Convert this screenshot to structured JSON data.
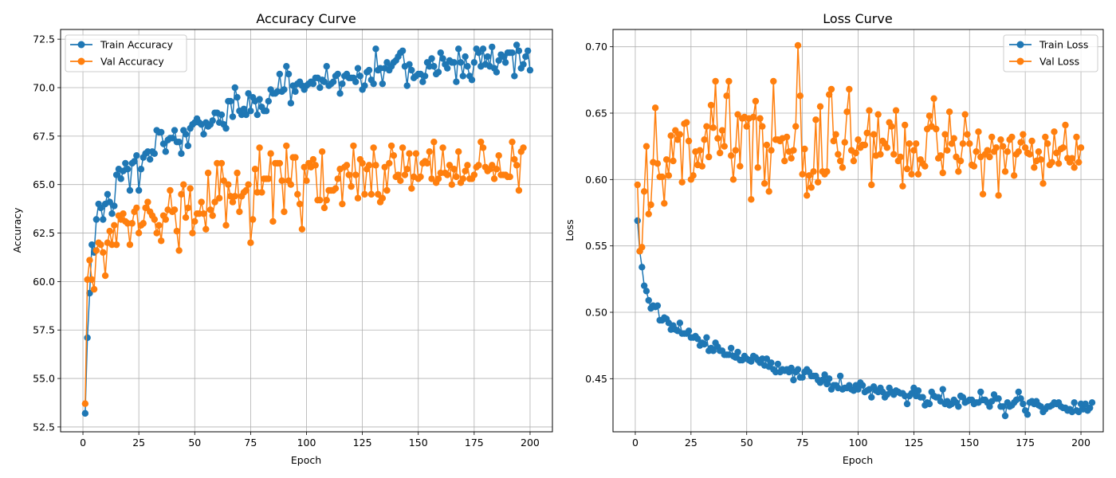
{
  "chart_data": [
    {
      "type": "line",
      "title": "Accuracy Curve",
      "xlabel": "Epoch",
      "ylabel": "Accuracy",
      "xlim": [
        -10,
        210
      ],
      "ylim": [
        52.25,
        73.0
      ],
      "xticks": [
        0,
        25,
        50,
        75,
        100,
        125,
        150,
        175,
        200
      ],
      "yticks": [
        52.5,
        55.0,
        57.5,
        60.0,
        62.5,
        65.0,
        67.5,
        70.0,
        72.5
      ],
      "grid": true,
      "legend": "top-left",
      "series": [
        {
          "name": "Train Accuracy",
          "color": "#1f77b4",
          "marker": "circle",
          "x_start": 1,
          "values": [
            53.2,
            57.1,
            59.4,
            61.9,
            61.5,
            63.2,
            64.0,
            63.8,
            63.2,
            64.0,
            64.5,
            64.1,
            63.5,
            63.9,
            65.5,
            65.8,
            65.3,
            65.7,
            66.1,
            65.8,
            64.7,
            66.1,
            66.2,
            66.5,
            64.7,
            65.8,
            66.4,
            66.6,
            66.7,
            66.3,
            66.7,
            66.6,
            67.8,
            67.7,
            67.7,
            67.1,
            66.7,
            67.3,
            67.4,
            67.4,
            67.8,
            67.2,
            67.2,
            66.6,
            67.8,
            67.6,
            67.0,
            67.9,
            68.1,
            68.2,
            68.4,
            68.2,
            68.1,
            67.6,
            68.2,
            68.0,
            68.1,
            68.3,
            68.7,
            68.7,
            68.2,
            68.6,
            68.1,
            67.9,
            69.3,
            69.3,
            68.5,
            70.0,
            69.5,
            68.8,
            68.6,
            68.9,
            68.6,
            69.7,
            68.8,
            69.5,
            69.3,
            68.6,
            69.4,
            69.0,
            68.8,
            68.8,
            69.3,
            69.9,
            69.7,
            69.7,
            69.8,
            70.7,
            69.8,
            69.9,
            71.1,
            70.7,
            69.2,
            70.1,
            69.8,
            70.2,
            70.3,
            70.1,
            69.9,
            70.1,
            70.2,
            70.3,
            70.2,
            70.5,
            70.5,
            70.0,
            70.4,
            70.3,
            71.1,
            70.1,
            70.2,
            70.3,
            70.6,
            70.7,
            69.7,
            70.2,
            70.6,
            70.7,
            70.5,
            70.5,
            70.5,
            70.3,
            71.0,
            70.6,
            69.9,
            70.1,
            70.8,
            70.9,
            70.4,
            70.2,
            72.0,
            70.9,
            71.0,
            70.2,
            71.0,
            71.3,
            70.9,
            71.1,
            71.3,
            71.4,
            71.6,
            71.8,
            71.9,
            71.1,
            70.1,
            71.2,
            70.9,
            70.5,
            70.6,
            70.7,
            70.7,
            70.3,
            70.6,
            71.3,
            71.1,
            71.5,
            71.1,
            70.7,
            70.8,
            71.8,
            71.5,
            71.2,
            71.0,
            71.4,
            71.3,
            71.3,
            70.3,
            72.0,
            71.3,
            70.6,
            71.6,
            71.1,
            70.6,
            70.4,
            71.3,
            72.0,
            71.8,
            71.1,
            72.0,
            71.2,
            71.6,
            71.1,
            72.1,
            71.0,
            70.8,
            71.4,
            71.7,
            71.6,
            71.3,
            71.8,
            71.8,
            71.8,
            70.6,
            72.2,
            71.9,
            71.0,
            71.2,
            71.6,
            71.9,
            70.9
          ],
          "values_note": ""
        },
        {
          "name": "Val Accuracy",
          "color": "#ff7f0e",
          "marker": "circle",
          "x_start": 1,
          "values": [
            53.7,
            60.1,
            61.1,
            60.1,
            59.6,
            61.6,
            62.0,
            61.9,
            61.5,
            60.3,
            62.0,
            62.6,
            61.9,
            62.9,
            61.9,
            63.4,
            63.2,
            63.5,
            63.1,
            63.0,
            61.9,
            63.0,
            63.6,
            63.8,
            62.5,
            62.9,
            63.0,
            63.8,
            64.1,
            63.6,
            63.4,
            63.2,
            62.5,
            62.9,
            62.1,
            63.4,
            63.2,
            63.7,
            64.7,
            63.6,
            63.7,
            62.6,
            61.6,
            64.5,
            65.0,
            63.3,
            63.8,
            64.8,
            62.5,
            63.1,
            63.5,
            63.5,
            64.1,
            63.5,
            62.7,
            65.6,
            63.7,
            63.4,
            64.1,
            66.1,
            64.3,
            66.1,
            65.2,
            62.9,
            65.0,
            64.4,
            64.1,
            64.4,
            65.6,
            63.6,
            64.4,
            64.6,
            64.7,
            65.0,
            62.0,
            63.2,
            65.8,
            64.6,
            66.9,
            64.6,
            65.3,
            65.3,
            65.3,
            66.6,
            63.1,
            66.1,
            66.1,
            66.1,
            65.2,
            63.6,
            67.0,
            65.2,
            65.0,
            66.4,
            66.4,
            64.5,
            64.0,
            62.7,
            65.9,
            65.2,
            66.1,
            65.9,
            66.3,
            66.0,
            64.2,
            64.2,
            66.7,
            63.8,
            64.2,
            64.7,
            64.7,
            64.7,
            64.8,
            65.3,
            65.8,
            64.0,
            65.9,
            66.0,
            65.5,
            64.9,
            67.0,
            65.5,
            64.3,
            66.3,
            66.1,
            64.5,
            65.8,
            66.0,
            64.5,
            66.9,
            66.0,
            64.5,
            64.1,
            64.3,
            65.9,
            64.7,
            66.1,
            67.0,
            66.5,
            65.4,
            65.5,
            65.2,
            66.9,
            65.5,
            65.8,
            66.6,
            64.8,
            65.4,
            66.6,
            65.3,
            65.4,
            66.1,
            66.2,
            66.1,
            66.7,
            65.3,
            67.2,
            65.1,
            65.3,
            65.6,
            66.9,
            65.6,
            65.5,
            66.0,
            65.0,
            65.8,
            65.4,
            66.7,
            65.1,
            65.3,
            65.7,
            66.0,
            65.3,
            65.3,
            65.5,
            65.9,
            66.0,
            67.2,
            66.9,
            65.9,
            65.7,
            65.8,
            66.0,
            65.3,
            65.8,
            66.5,
            65.5,
            65.5,
            65.5,
            65.4,
            65.4,
            67.2,
            66.3,
            66.0,
            64.7,
            66.7,
            66.9
          ]
        }
      ]
    },
    {
      "type": "line",
      "title": "Loss Curve",
      "xlabel": "Epoch",
      "ylabel": "Loss",
      "xlim": [
        -10,
        210
      ],
      "ylim": [
        0.41,
        0.713
      ],
      "xticks": [
        0,
        25,
        50,
        75,
        100,
        125,
        150,
        175,
        200
      ],
      "yticks": [
        0.45,
        0.5,
        0.55,
        0.6,
        0.65,
        0.7
      ],
      "grid": true,
      "legend": "top-right",
      "series": [
        {
          "name": "Train Loss",
          "color": "#1f77b4",
          "marker": "circle",
          "x_start": 1,
          "values": [
            0.569,
            0.546,
            0.534,
            0.52,
            0.516,
            0.509,
            0.503,
            0.505,
            0.504,
            0.505,
            0.494,
            0.494,
            0.496,
            0.495,
            0.492,
            0.487,
            0.49,
            0.487,
            0.486,
            0.492,
            0.484,
            0.484,
            0.484,
            0.486,
            0.481,
            0.481,
            0.482,
            0.48,
            0.475,
            0.477,
            0.476,
            0.481,
            0.471,
            0.473,
            0.471,
            0.477,
            0.474,
            0.471,
            0.471,
            0.468,
            0.468,
            0.468,
            0.473,
            0.467,
            0.466,
            0.47,
            0.464,
            0.464,
            0.467,
            0.465,
            0.464,
            0.463,
            0.467,
            0.466,
            0.464,
            0.462,
            0.465,
            0.46,
            0.465,
            0.459,
            0.462,
            0.457,
            0.455,
            0.461,
            0.455,
            0.457,
            0.456,
            0.457,
            0.455,
            0.458,
            0.449,
            0.455,
            0.457,
            0.451,
            0.451,
            0.455,
            0.457,
            0.455,
            0.452,
            0.452,
            0.452,
            0.449,
            0.447,
            0.449,
            0.453,
            0.446,
            0.45,
            0.442,
            0.445,
            0.445,
            0.443,
            0.452,
            0.442,
            0.443,
            0.443,
            0.445,
            0.442,
            0.441,
            0.445,
            0.442,
            0.447,
            0.445,
            0.44,
            0.441,
            0.442,
            0.436,
            0.444,
            0.441,
            0.44,
            0.443,
            0.44,
            0.436,
            0.438,
            0.443,
            0.44,
            0.438,
            0.441,
            0.44,
            0.439,
            0.439,
            0.437,
            0.431,
            0.437,
            0.439,
            0.443,
            0.437,
            0.441,
            0.436,
            0.436,
            0.43,
            0.432,
            0.431,
            0.44,
            0.437,
            0.436,
            0.436,
            0.433,
            0.442,
            0.431,
            0.433,
            0.43,
            0.431,
            0.434,
            0.432,
            0.429,
            0.437,
            0.436,
            0.432,
            0.433,
            0.434,
            0.434,
            0.431,
            0.432,
            0.432,
            0.44,
            0.434,
            0.434,
            0.432,
            0.429,
            0.433,
            0.438,
            0.435,
            0.435,
            0.429,
            0.429,
            0.422,
            0.432,
            0.429,
            0.43,
            0.432,
            0.434,
            0.44,
            0.435,
            0.431,
            0.426,
            0.423,
            0.432,
            0.433,
            0.431,
            0.433,
            0.43,
            0.429,
            0.425,
            0.427,
            0.429,
            0.429,
            0.43,
            0.432,
            0.431,
            0.432,
            0.429,
            0.428,
            0.428,
            0.426,
            0.427,
            0.425,
            0.432,
            0.426,
            0.425,
            0.431,
            0.427,
            0.431,
            0.426,
            0.428,
            0.432
          ]
        },
        {
          "name": "Val Loss",
          "color": "#ff7f0e",
          "marker": "circle",
          "x_start": 1,
          "values": [
            0.596,
            0.546,
            0.549,
            0.591,
            0.625,
            0.574,
            0.581,
            0.613,
            0.654,
            0.612,
            0.602,
            0.602,
            0.582,
            0.615,
            0.603,
            0.633,
            0.614,
            0.637,
            0.63,
            0.634,
            0.598,
            0.642,
            0.643,
            0.629,
            0.6,
            0.603,
            0.621,
            0.611,
            0.622,
            0.61,
            0.63,
            0.64,
            0.617,
            0.656,
            0.639,
            0.674,
            0.631,
            0.62,
            0.637,
            0.625,
            0.663,
            0.674,
            0.618,
            0.6,
            0.622,
            0.649,
            0.61,
            0.646,
            0.647,
            0.64,
            0.646,
            0.585,
            0.647,
            0.659,
            0.609,
            0.646,
            0.64,
            0.597,
            0.626,
            0.591,
            0.622,
            0.674,
            0.63,
            0.63,
            0.629,
            0.631,
            0.614,
            0.632,
            0.621,
            0.616,
            0.622,
            0.64,
            0.701,
            0.663,
            0.604,
            0.623,
            0.588,
            0.603,
            0.594,
            0.606,
            0.645,
            0.598,
            0.655,
            0.606,
            0.604,
            0.606,
            0.664,
            0.668,
            0.629,
            0.634,
            0.619,
            0.614,
            0.609,
            0.628,
            0.651,
            0.668,
            0.622,
            0.614,
            0.62,
            0.63,
            0.624,
            0.626,
            0.626,
            0.635,
            0.652,
            0.596,
            0.634,
            0.618,
            0.649,
            0.619,
            0.629,
            0.627,
            0.624,
            0.643,
            0.64,
            0.619,
            0.652,
            0.614,
            0.617,
            0.595,
            0.641,
            0.608,
            0.627,
            0.604,
            0.622,
            0.627,
            0.604,
            0.615,
            0.612,
            0.61,
            0.638,
            0.648,
            0.64,
            0.661,
            0.638,
            0.616,
            0.618,
            0.605,
            0.634,
            0.622,
            0.651,
            0.627,
            0.631,
            0.617,
            0.606,
            0.614,
            0.627,
            0.649,
            0.634,
            0.627,
            0.611,
            0.61,
            0.621,
            0.636,
            0.617,
            0.589,
            0.619,
            0.622,
            0.617,
            0.632,
            0.621,
            0.624,
            0.588,
            0.63,
            0.625,
            0.606,
            0.621,
            0.63,
            0.632,
            0.603,
            0.619,
            0.621,
            0.628,
            0.634,
            0.624,
            0.62,
            0.619,
            0.629,
            0.609,
            0.614,
            0.621,
            0.615,
            0.597,
            0.632,
            0.627,
            0.611,
            0.613,
            0.636,
            0.62,
            0.612,
            0.623,
            0.624,
            0.641,
            0.616,
            0.613,
            0.616,
            0.609,
            0.632,
            0.613,
            0.624
          ]
        }
      ]
    }
  ]
}
